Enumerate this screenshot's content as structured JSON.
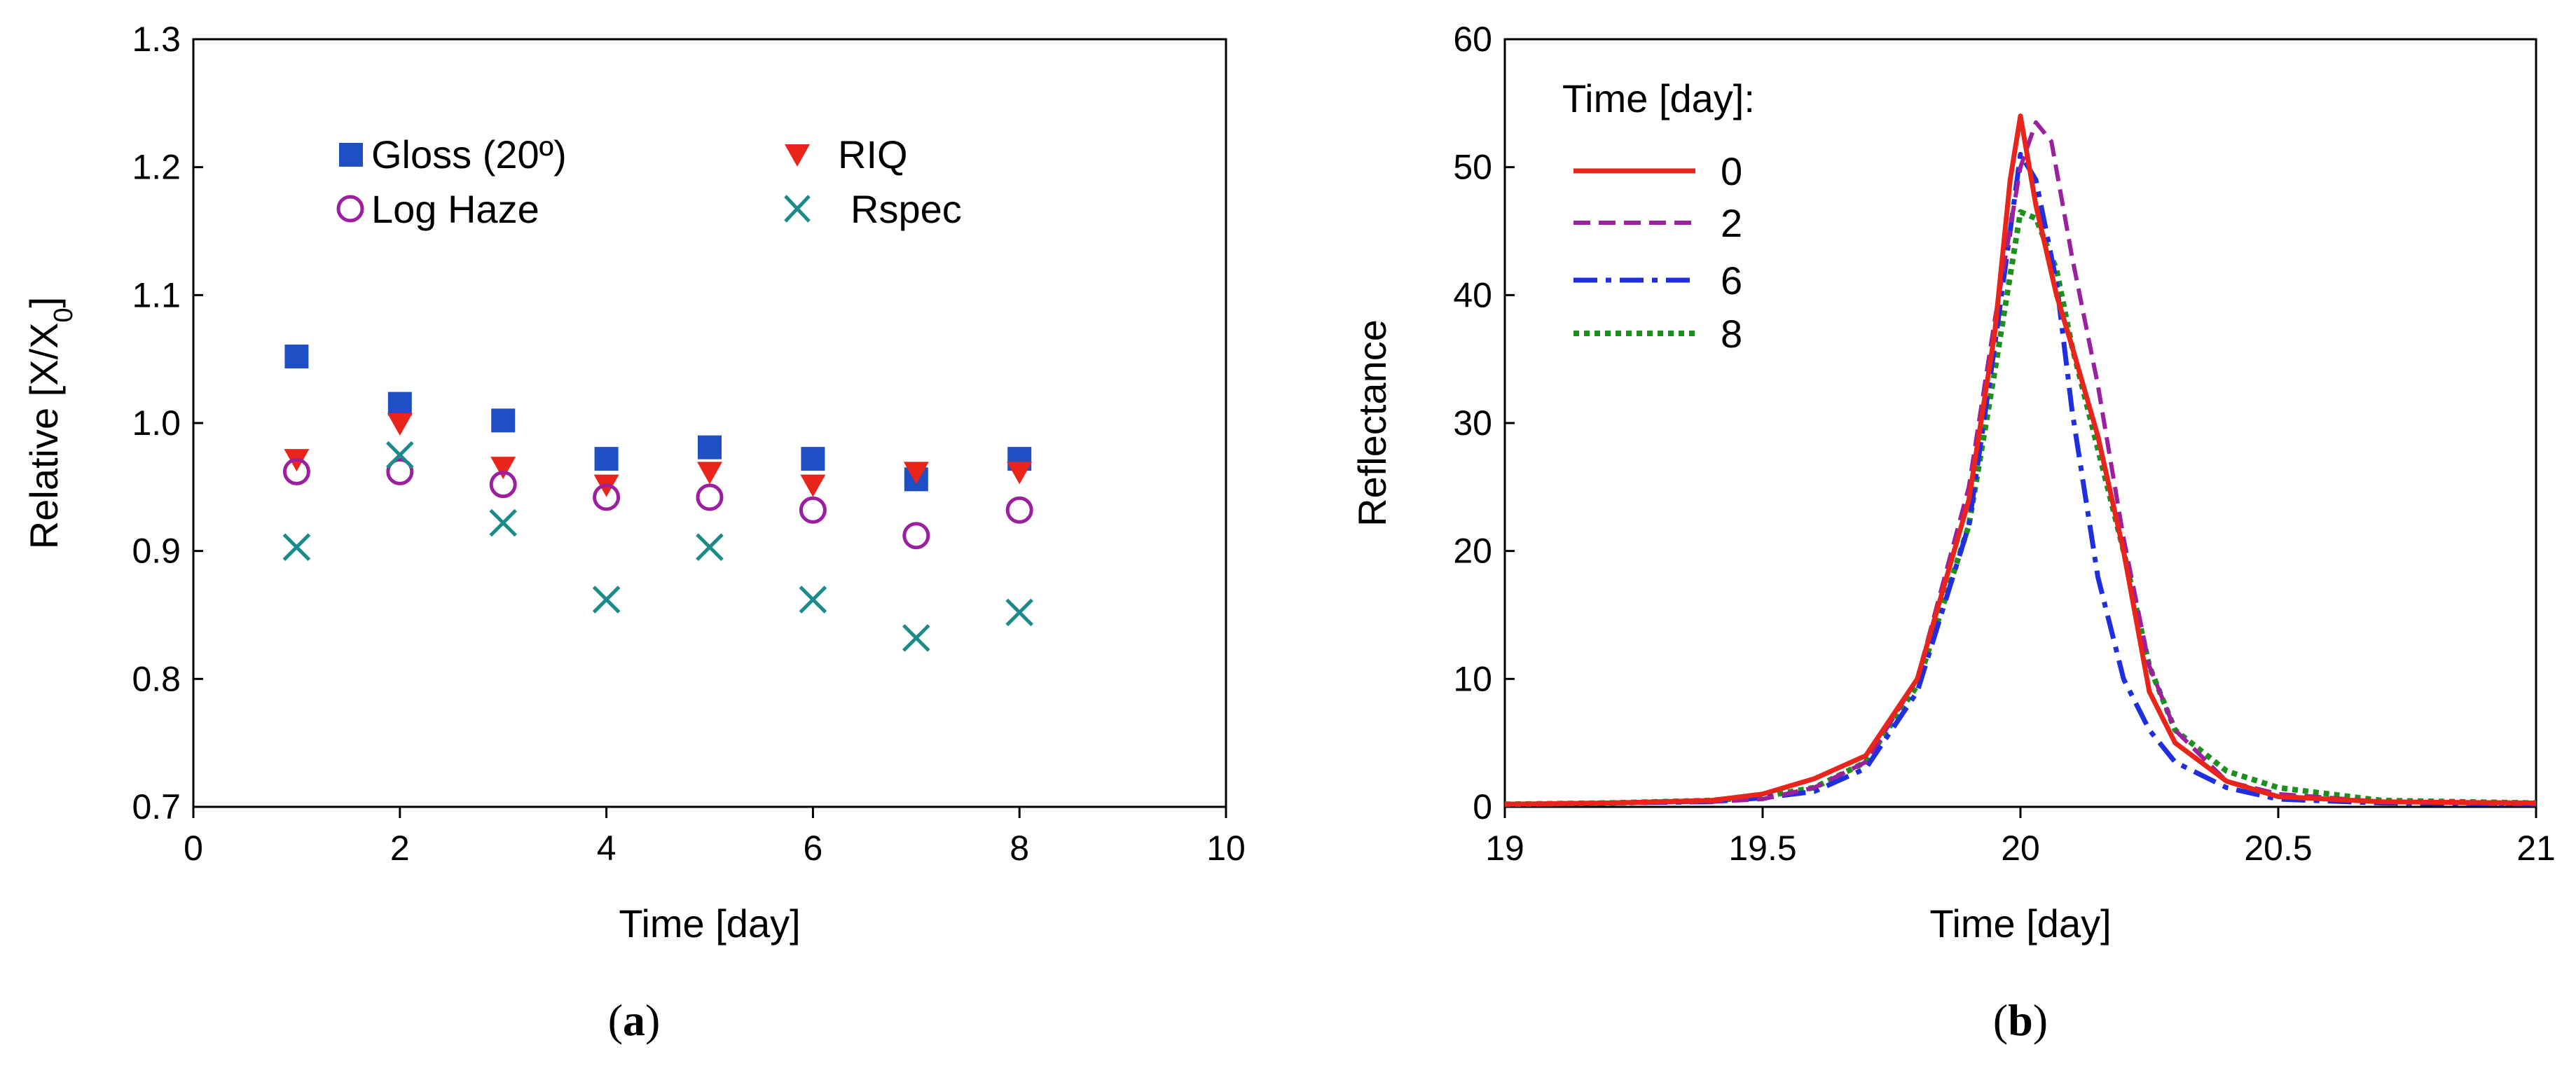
{
  "chart_data": [
    {
      "type": "scatter",
      "panel_label": "a",
      "xlabel": "Time [day]",
      "ylabel": "Relative [X/X",
      "ylabel_subscript": "0",
      "ylabel_suffix": "]",
      "xlim": [
        0,
        10
      ],
      "ylim": [
        0.7,
        1.3
      ],
      "xticks": [
        0,
        2,
        4,
        6,
        8,
        10
      ],
      "yticks": [
        0.7,
        0.8,
        0.9,
        1.0,
        1.1,
        1.2,
        1.3
      ],
      "xtick_labels": [
        "0",
        "2",
        "4",
        "6",
        "8",
        "10"
      ],
      "ytick_labels": [
        "0.7",
        "0.8",
        "0.9",
        "1.0",
        "1.1",
        "1.2",
        "1.3"
      ],
      "x": [
        1,
        2,
        3,
        4,
        5,
        6,
        7,
        8
      ],
      "series": [
        {
          "name": "Gloss (20º)",
          "marker": "square",
          "color": "#1f4fc4",
          "values": [
            1.052,
            1.015,
            1.002,
            0.972,
            0.981,
            0.972,
            0.956,
            0.972
          ]
        },
        {
          "name": "RIQ",
          "marker": "triangle-down",
          "color": "#e8241b",
          "values": [
            0.972,
            1.0,
            0.966,
            0.952,
            0.962,
            0.952,
            0.962,
            0.962
          ]
        },
        {
          "name": "Log Haze",
          "marker": "circle-open",
          "color": "#9b1f9e",
          "values": [
            0.962,
            0.962,
            0.952,
            0.942,
            0.942,
            0.932,
            0.912,
            0.932
          ]
        },
        {
          "name": "Rspec",
          "marker": "x",
          "color": "#1b8a8a",
          "values": [
            0.903,
            0.975,
            0.922,
            0.862,
            0.903,
            0.862,
            0.832,
            0.852
          ]
        }
      ],
      "legend_position": "top"
    },
    {
      "type": "line",
      "panel_label": "b",
      "xlabel": "Time [day]",
      "ylabel": "Reflectance",
      "xlim": [
        19,
        21
      ],
      "ylim": [
        0,
        60
      ],
      "xticks": [
        19,
        19.5,
        20,
        20.5,
        21
      ],
      "yticks": [
        0,
        10,
        20,
        30,
        40,
        50,
        60
      ],
      "xtick_labels": [
        "19",
        "19.5",
        "20",
        "20.5",
        "21"
      ],
      "ytick_labels": [
        "0",
        "10",
        "20",
        "30",
        "40",
        "50",
        "60"
      ],
      "legend_title": "Time [day]:",
      "legend_position": "top-left",
      "series": [
        {
          "name": "0",
          "color": "#e8241b",
          "dash": "solid",
          "x": [
            19,
            19.2,
            19.4,
            19.5,
            19.6,
            19.7,
            19.8,
            19.9,
            19.95,
            19.98,
            20.0,
            20.03,
            20.07,
            20.1,
            20.15,
            20.2,
            20.25,
            20.3,
            20.4,
            20.5,
            20.7,
            21
          ],
          "y": [
            0.2,
            0.3,
            0.5,
            1.0,
            2.2,
            4.0,
            10.0,
            24.0,
            37.0,
            49.0,
            54.0,
            47.0,
            40.0,
            36.0,
            29.0,
            20.0,
            9.0,
            5.0,
            2.0,
            0.8,
            0.4,
            0.3
          ]
        },
        {
          "name": "2",
          "color": "#9b1f9e",
          "dash": "dashed",
          "x": [
            19,
            19.2,
            19.4,
            19.5,
            19.6,
            19.7,
            19.8,
            19.9,
            19.95,
            20.0,
            20.03,
            20.06,
            20.1,
            20.15,
            20.2,
            20.25,
            20.3,
            20.4,
            20.5,
            20.7,
            21
          ],
          "y": [
            0.2,
            0.3,
            0.4,
            0.6,
            1.5,
            3.5,
            10.0,
            25.0,
            38.0,
            50.0,
            53.5,
            52.0,
            43.0,
            33.0,
            21.0,
            11.0,
            6.0,
            2.0,
            1.0,
            0.4,
            0.2
          ]
        },
        {
          "name": "6",
          "color": "#1f2fe0",
          "dash": "dashdot",
          "x": [
            19,
            19.2,
            19.4,
            19.5,
            19.6,
            19.7,
            19.8,
            19.9,
            19.95,
            20.0,
            20.03,
            20.07,
            20.1,
            20.15,
            20.2,
            20.25,
            20.3,
            20.4,
            20.5,
            20.7,
            21
          ],
          "y": [
            0.2,
            0.3,
            0.4,
            0.7,
            1.2,
            3.0,
            9.0,
            22.0,
            36.0,
            51.0,
            49.0,
            41.0,
            31.0,
            18.0,
            10.0,
            6.0,
            3.5,
            1.5,
            0.6,
            0.3,
            0.2
          ]
        },
        {
          "name": "8",
          "color": "#1d8f1d",
          "dash": "dotted",
          "x": [
            19,
            19.2,
            19.4,
            19.5,
            19.6,
            19.7,
            19.8,
            19.9,
            19.95,
            20.0,
            20.03,
            20.07,
            20.1,
            20.15,
            20.2,
            20.25,
            20.3,
            20.4,
            20.5,
            20.7,
            21
          ],
          "y": [
            0.2,
            0.3,
            0.5,
            0.8,
            1.5,
            3.5,
            9.5,
            22.0,
            34.0,
            46.5,
            46.0,
            42.0,
            36.0,
            28.0,
            20.0,
            11.0,
            6.0,
            2.8,
            1.5,
            0.5,
            0.3
          ]
        }
      ]
    }
  ]
}
